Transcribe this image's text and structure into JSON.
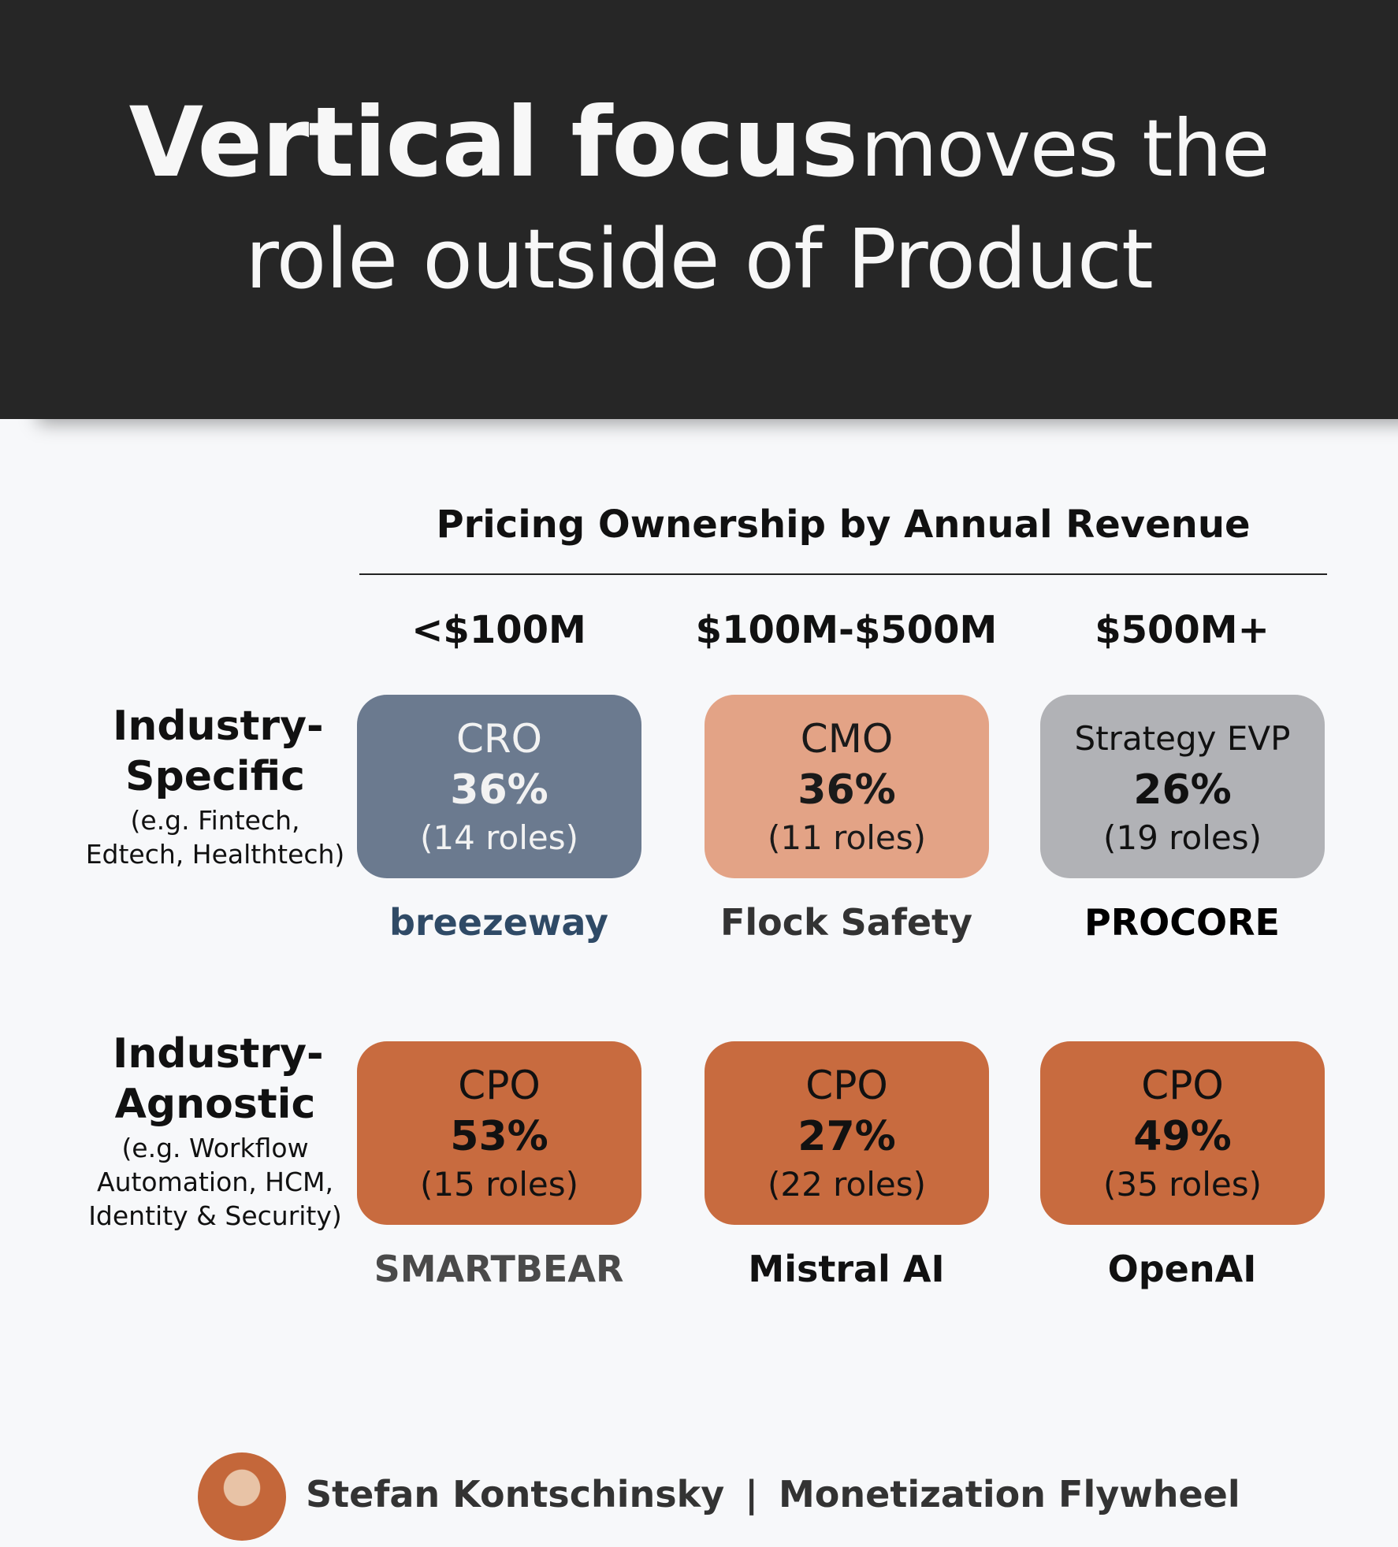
{
  "header": {
    "title_bold": "Vertical focus",
    "title_rest": "moves the",
    "title_line2": "role outside of Product"
  },
  "table": {
    "title": "Pricing Ownership by Annual Revenue",
    "columns": [
      "<$100M",
      "$100M-$500M",
      "$500M+"
    ],
    "rows": [
      {
        "label": "Industry-Specific",
        "note": "(e.g. Fintech, Edtech, Healthtech)",
        "cells": [
          {
            "role": "CRO",
            "percent": "36%",
            "count": "(14 roles)",
            "company": "breezeway",
            "color": "#6b7a8f",
            "text_color": "#f2f2f2",
            "logo_color": "#2f4a66"
          },
          {
            "role": "CMO",
            "percent": "36%",
            "count": "(11 roles)",
            "company": "Flock Safety",
            "color": "#e3a386",
            "text_color": "#1a1a1a",
            "logo_color": "#333333"
          },
          {
            "role": "Strategy EVP",
            "percent": "26%",
            "count": "(19 roles)",
            "company": "PROCORE",
            "color": "#b1b2b6",
            "text_color": "#111111",
            "logo_color": "#000000"
          }
        ]
      },
      {
        "label": "Industry-Agnostic",
        "note": "(e.g. Workflow Automation, HCM, Identity & Security)",
        "cells": [
          {
            "role": "CPO",
            "percent": "53%",
            "count": "(15 roles)",
            "company": "SMARTBEAR",
            "color": "#c86b3f",
            "text_color": "#111111",
            "logo_color": "#4a4a4a"
          },
          {
            "role": "CPO",
            "percent": "27%",
            "count": "(22 roles)",
            "company": "Mistral AI",
            "color": "#c86b3f",
            "text_color": "#111111",
            "logo_color": "#111111"
          },
          {
            "role": "CPO",
            "percent": "49%",
            "count": "(35 roles)",
            "company": "OpenAI",
            "color": "#c86b3f",
            "text_color": "#111111",
            "logo_color": "#111111"
          }
        ]
      }
    ]
  },
  "footer": {
    "author": "Stefan Kontschinsky",
    "separator": "|",
    "publication": "Monetization Flywheel"
  }
}
